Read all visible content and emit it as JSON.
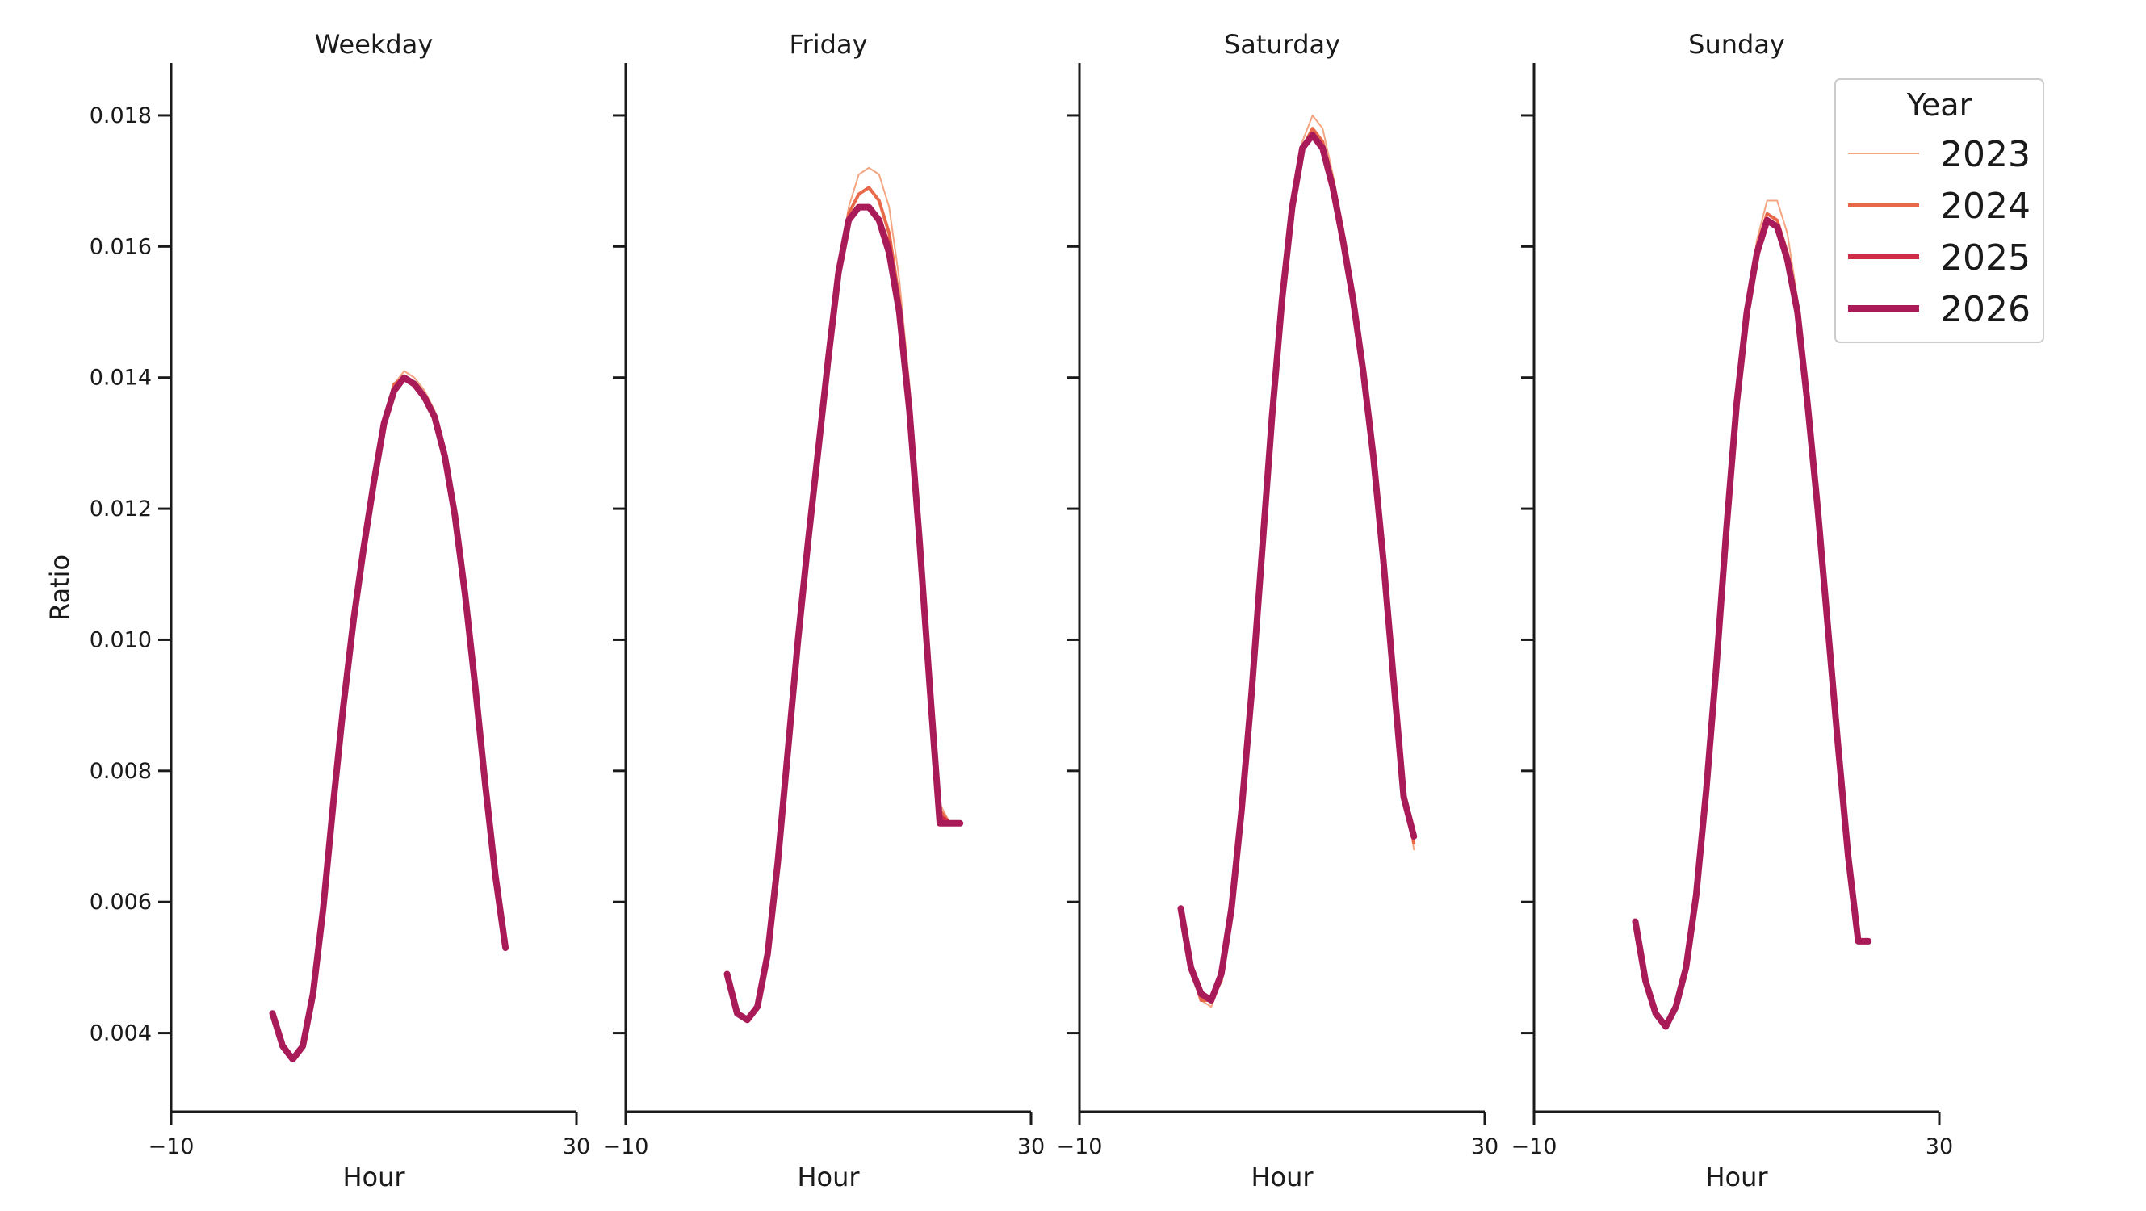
{
  "chart_data": {
    "type": "line",
    "xlabel": "Hour",
    "ylabel": "Ratio",
    "xlim": [
      -10,
      30
    ],
    "ylim": [
      0.0028,
      0.0188
    ],
    "xticks": [
      -10,
      30
    ],
    "xtick_labels": [
      "−10",
      "30"
    ],
    "yticks": [
      0.004,
      0.006,
      0.008,
      0.01,
      0.012,
      0.014,
      0.016,
      0.018
    ],
    "ytick_labels": [
      "0.004",
      "0.006",
      "0.008",
      "0.010",
      "0.012",
      "0.014",
      "0.016",
      "0.018"
    ],
    "grid": false,
    "x": [
      0,
      1,
      2,
      3,
      4,
      5,
      6,
      7,
      8,
      9,
      10,
      11,
      12,
      13,
      14,
      15,
      16,
      17,
      18,
      19,
      20,
      21,
      22,
      23
    ],
    "legend": {
      "title": "Year",
      "placement": "top-right",
      "entries": [
        "2023",
        "2024",
        "2025",
        "2026"
      ]
    },
    "series_styles": [
      {
        "name": "2023",
        "color": "#f4a582",
        "width": 2
      },
      {
        "name": "2024",
        "color": "#e8694a",
        "width": 4
      },
      {
        "name": "2025",
        "color": "#d12c47",
        "width": 6
      },
      {
        "name": "2026",
        "color": "#a81b58",
        "width": 8
      }
    ],
    "panels": [
      {
        "title": "Weekday",
        "series": [
          {
            "name": "2023",
            "values": [
              0.0043,
              0.0038,
              0.0036,
              0.0038,
              0.0046,
              0.0059,
              0.0075,
              0.009,
              0.0103,
              0.0114,
              0.0124,
              0.0133,
              0.0139,
              0.0141,
              0.014,
              0.0138,
              0.0135,
              0.0129,
              0.012,
              0.0108,
              0.0094,
              0.0079,
              0.0065,
              0.0053
            ]
          },
          {
            "name": "2024",
            "values": [
              0.0043,
              0.0038,
              0.0036,
              0.0038,
              0.0046,
              0.0059,
              0.0075,
              0.009,
              0.0103,
              0.0114,
              0.0124,
              0.0133,
              0.0139,
              0.014,
              0.0139,
              0.0137,
              0.0134,
              0.0128,
              0.0119,
              0.0107,
              0.0093,
              0.0078,
              0.0064,
              0.0053
            ]
          },
          {
            "name": "2025",
            "values": [
              0.0043,
              0.0038,
              0.0036,
              0.0038,
              0.0046,
              0.0059,
              0.0075,
              0.009,
              0.0103,
              0.0114,
              0.0124,
              0.0133,
              0.0138,
              0.014,
              0.0139,
              0.0137,
              0.0134,
              0.0128,
              0.0119,
              0.0107,
              0.0093,
              0.0078,
              0.0064,
              0.0053
            ]
          },
          {
            "name": "2026",
            "values": [
              0.0043,
              0.0038,
              0.0036,
              0.0038,
              0.0046,
              0.0059,
              0.0075,
              0.009,
              0.0103,
              0.0114,
              0.0124,
              0.0133,
              0.0138,
              0.014,
              0.0139,
              0.0137,
              0.0134,
              0.0128,
              0.0119,
              0.0107,
              0.0093,
              0.0078,
              0.0064,
              0.0053
            ]
          }
        ]
      },
      {
        "title": "Friday",
        "series": [
          {
            "name": "2023",
            "values": [
              0.0049,
              0.0043,
              0.0042,
              0.0044,
              0.0052,
              0.0066,
              0.0083,
              0.01,
              0.0115,
              0.0129,
              0.0143,
              0.0156,
              0.0166,
              0.0171,
              0.0172,
              0.0171,
              0.0166,
              0.0155,
              0.0139,
              0.0119,
              0.0097,
              0.0075,
              0.0072,
              0.0072
            ]
          },
          {
            "name": "2024",
            "values": [
              0.0049,
              0.0043,
              0.0042,
              0.0044,
              0.0052,
              0.0066,
              0.0083,
              0.01,
              0.0115,
              0.0129,
              0.0143,
              0.0156,
              0.0165,
              0.0168,
              0.0169,
              0.0167,
              0.0162,
              0.0152,
              0.0137,
              0.0117,
              0.0095,
              0.0074,
              0.0072,
              0.0072
            ]
          },
          {
            "name": "2025",
            "values": [
              0.0049,
              0.0043,
              0.0042,
              0.0044,
              0.0052,
              0.0066,
              0.0083,
              0.01,
              0.0115,
              0.0129,
              0.0143,
              0.0156,
              0.0164,
              0.0166,
              0.0166,
              0.0164,
              0.016,
              0.015,
              0.0136,
              0.0116,
              0.0094,
              0.0073,
              0.0072,
              0.0072
            ]
          },
          {
            "name": "2026",
            "values": [
              0.0049,
              0.0043,
              0.0042,
              0.0044,
              0.0052,
              0.0066,
              0.0083,
              0.01,
              0.0115,
              0.0129,
              0.0143,
              0.0156,
              0.0164,
              0.0166,
              0.0166,
              0.0164,
              0.0159,
              0.015,
              0.0135,
              0.0115,
              0.0093,
              0.0072,
              0.0072,
              0.0072
            ]
          }
        ]
      },
      {
        "title": "Saturday",
        "series": [
          {
            "name": "2023",
            "values": [
              0.0059,
              0.005,
              0.0045,
              0.0044,
              0.0048,
              0.0059,
              0.0074,
              0.0092,
              0.0113,
              0.0134,
              0.0152,
              0.0167,
              0.0176,
              0.018,
              0.0178,
              0.0171,
              0.0163,
              0.0154,
              0.0143,
              0.013,
              0.0114,
              0.0096,
              0.0078,
              0.0068
            ]
          },
          {
            "name": "2024",
            "values": [
              0.0059,
              0.005,
              0.0045,
              0.0045,
              0.0048,
              0.0059,
              0.0074,
              0.0092,
              0.0113,
              0.0134,
              0.0152,
              0.0166,
              0.0175,
              0.0178,
              0.0176,
              0.017,
              0.0162,
              0.0153,
              0.0142,
              0.0129,
              0.0113,
              0.0095,
              0.0077,
              0.0069
            ]
          },
          {
            "name": "2025",
            "values": [
              0.0059,
              0.005,
              0.0046,
              0.0045,
              0.0049,
              0.0059,
              0.0074,
              0.0092,
              0.0113,
              0.0134,
              0.0152,
              0.0166,
              0.0175,
              0.0177,
              0.0175,
              0.0169,
              0.0161,
              0.0152,
              0.0141,
              0.0128,
              0.0112,
              0.0094,
              0.0076,
              0.007
            ]
          },
          {
            "name": "2026",
            "values": [
              0.0059,
              0.005,
              0.0046,
              0.0045,
              0.0049,
              0.0059,
              0.0074,
              0.0092,
              0.0113,
              0.0134,
              0.0152,
              0.0166,
              0.0175,
              0.0177,
              0.0175,
              0.0169,
              0.0161,
              0.0152,
              0.0141,
              0.0128,
              0.0112,
              0.0094,
              0.0076,
              0.007
            ]
          }
        ]
      },
      {
        "title": "Sunday",
        "series": [
          {
            "name": "2023",
            "values": [
              0.0057,
              0.0048,
              0.0043,
              0.0041,
              0.0044,
              0.005,
              0.0061,
              0.0077,
              0.0096,
              0.0117,
              0.0136,
              0.015,
              0.0161,
              0.0167,
              0.0167,
              0.0162,
              0.0152,
              0.0138,
              0.0122,
              0.0104,
              0.0086,
              0.0068,
              0.0054,
              0.0054
            ]
          },
          {
            "name": "2024",
            "values": [
              0.0057,
              0.0048,
              0.0043,
              0.0041,
              0.0044,
              0.005,
              0.0061,
              0.0077,
              0.0096,
              0.0117,
              0.0136,
              0.015,
              0.016,
              0.0165,
              0.0164,
              0.0159,
              0.0151,
              0.0137,
              0.0121,
              0.0103,
              0.0085,
              0.0067,
              0.0054,
              0.0054
            ]
          },
          {
            "name": "2025",
            "values": [
              0.0057,
              0.0048,
              0.0043,
              0.0041,
              0.0044,
              0.005,
              0.0061,
              0.0077,
              0.0096,
              0.0117,
              0.0136,
              0.015,
              0.0159,
              0.0164,
              0.0163,
              0.0158,
              0.015,
              0.0136,
              0.012,
              0.0102,
              0.0084,
              0.0067,
              0.0054,
              0.0054
            ]
          },
          {
            "name": "2026",
            "values": [
              0.0057,
              0.0048,
              0.0043,
              0.0041,
              0.0044,
              0.005,
              0.0061,
              0.0077,
              0.0096,
              0.0117,
              0.0136,
              0.015,
              0.0159,
              0.0164,
              0.0163,
              0.0158,
              0.015,
              0.0136,
              0.012,
              0.0102,
              0.0084,
              0.0067,
              0.0054,
              0.0054
            ]
          }
        ]
      }
    ]
  }
}
